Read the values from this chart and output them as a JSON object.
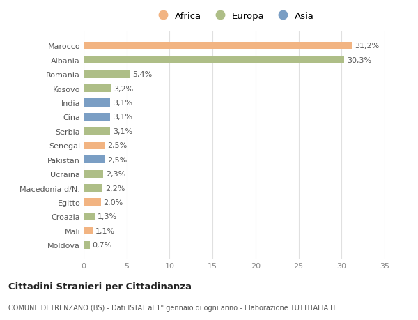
{
  "countries": [
    "Marocco",
    "Albania",
    "Romania",
    "Kosovo",
    "India",
    "Cina",
    "Serbia",
    "Senegal",
    "Pakistan",
    "Ucraina",
    "Macedonia d/N.",
    "Egitto",
    "Croazia",
    "Mali",
    "Moldova"
  ],
  "values": [
    31.2,
    30.3,
    5.4,
    3.2,
    3.1,
    3.1,
    3.1,
    2.5,
    2.5,
    2.3,
    2.2,
    2.0,
    1.3,
    1.1,
    0.7
  ],
  "labels": [
    "31,2%",
    "30,3%",
    "5,4%",
    "3,2%",
    "3,1%",
    "3,1%",
    "3,1%",
    "2,5%",
    "2,5%",
    "2,3%",
    "2,2%",
    "2,0%",
    "1,3%",
    "1,1%",
    "0,7%"
  ],
  "continents": [
    "Africa",
    "Europa",
    "Europa",
    "Europa",
    "Asia",
    "Asia",
    "Europa",
    "Africa",
    "Asia",
    "Europa",
    "Europa",
    "Africa",
    "Europa",
    "Africa",
    "Europa"
  ],
  "colors": {
    "Africa": "#F2B482",
    "Europa": "#AEBE87",
    "Asia": "#7A9EC4"
  },
  "legend_labels": [
    "Africa",
    "Europa",
    "Asia"
  ],
  "legend_colors": [
    "#F2B482",
    "#AEBE87",
    "#7A9EC4"
  ],
  "xlim": [
    0,
    35
  ],
  "xticks": [
    0,
    5,
    10,
    15,
    20,
    25,
    30,
    35
  ],
  "title": "Cittadini Stranieri per Cittadinanza",
  "subtitle": "COMUNE DI TRENZANO (BS) - Dati ISTAT al 1° gennaio di ogni anno - Elaborazione TUTTITALIA.IT",
  "background_color": "#ffffff",
  "bar_height": 0.55,
  "label_fontsize": 8,
  "tick_fontsize": 8
}
